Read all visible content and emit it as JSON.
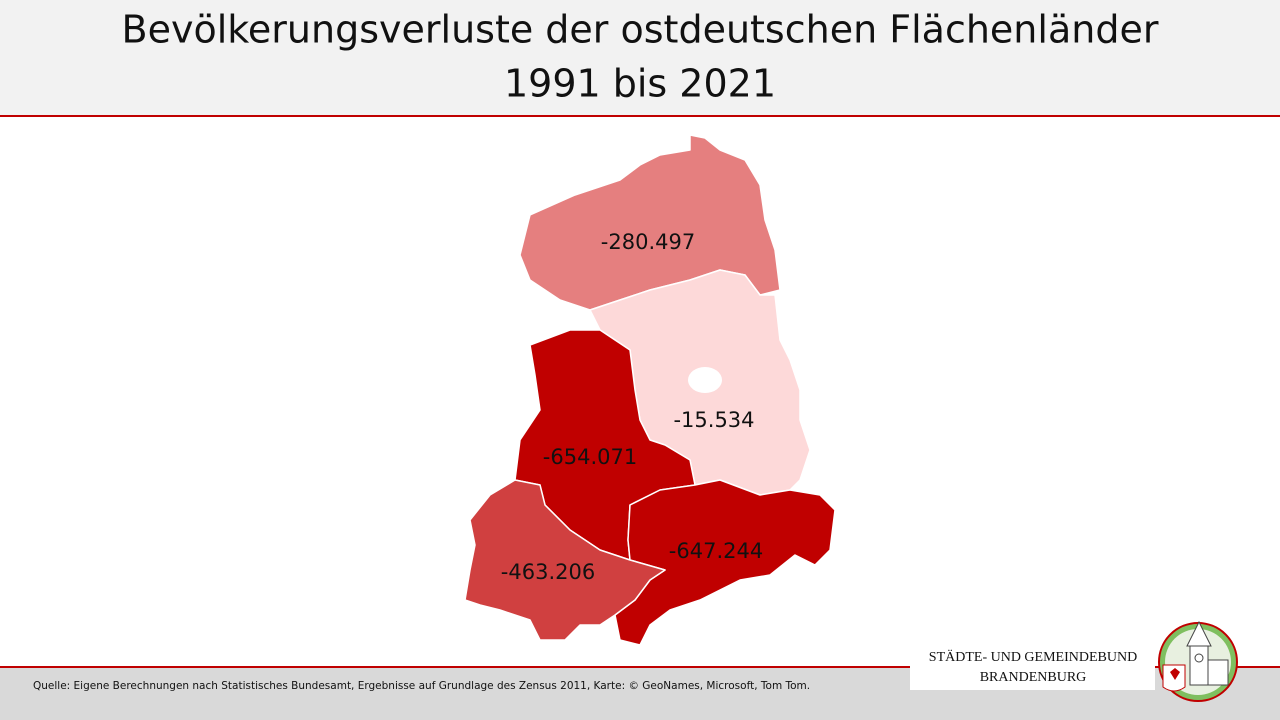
{
  "header": {
    "title_line1": "Bevölkerungsverluste der ostdeutschen Flächenländer",
    "title_line2": "1991 bis 2021"
  },
  "map": {
    "regions": [
      {
        "label": "-280.497"
      },
      {
        "label": "-15.534"
      },
      {
        "label": "-654.071"
      },
      {
        "label": "-647.244"
      },
      {
        "label": "-463.206"
      }
    ]
  },
  "footer": {
    "source": "Quelle: Eigene Berechnungen  nach Statistisches Bundesamt, Ergebnisse auf Grundlage des Zensus 2011, Karte:  © GeoNames,  Microsoft, Tom Tom.",
    "logo_line1": "STÄDTE-  UND GEMEINDEBUND",
    "logo_line2": "BRANDENBURG"
  }
}
